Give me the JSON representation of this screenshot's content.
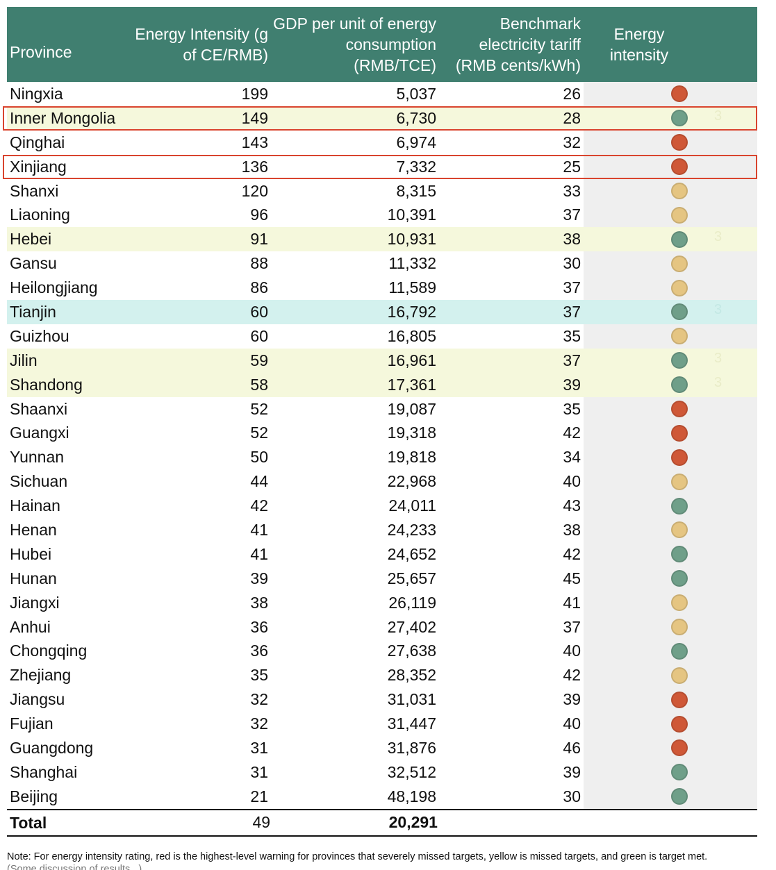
{
  "table": {
    "headers": {
      "province": "Province",
      "intensity": "Energy Intensity (g of CE/RMB)",
      "gdp": "GDP per unit of energy consumption (RMB/TCE)",
      "tariff": "Benchmark electricity tariff (RMB cents/kWh)",
      "rating": "Energy intensity"
    },
    "colors": {
      "header_bg": "#407f70",
      "red": "#cf5837",
      "yellow": "#e5c582",
      "green": "#6f9f89",
      "highlight_yellow": "#f5f8dc",
      "highlight_teal": "#d3f1ee",
      "box_border": "#d9442e"
    },
    "rows": [
      {
        "province": "Ningxia",
        "intensity": "199",
        "gdp": "5,037",
        "tariff": "26",
        "rating": "red"
      },
      {
        "province": "Inner Mongolia",
        "intensity": "149",
        "gdp": "6,730",
        "tariff": "28",
        "rating": "green",
        "highlight": "yellow",
        "boxed": true,
        "ghost": "3"
      },
      {
        "province": "Qinghai",
        "intensity": "143",
        "gdp": "6,974",
        "tariff": "32",
        "rating": "red"
      },
      {
        "province": "Xinjiang",
        "intensity": "136",
        "gdp": "7,332",
        "tariff": "25",
        "rating": "red",
        "boxed": true
      },
      {
        "province": "Shanxi",
        "intensity": "120",
        "gdp": "8,315",
        "tariff": "33",
        "rating": "yellow"
      },
      {
        "province": "Liaoning",
        "intensity": "96",
        "gdp": "10,391",
        "tariff": "37",
        "rating": "yellow"
      },
      {
        "province": "Hebei",
        "intensity": "91",
        "gdp": "10,931",
        "tariff": "38",
        "rating": "green",
        "highlight": "yellow",
        "ghost": "3"
      },
      {
        "province": "Gansu",
        "intensity": "88",
        "gdp": "11,332",
        "tariff": "30",
        "rating": "yellow"
      },
      {
        "province": "Heilongjiang",
        "intensity": "86",
        "gdp": "11,589",
        "tariff": "37",
        "rating": "yellow"
      },
      {
        "province": "Tianjin",
        "intensity": "60",
        "gdp": "16,792",
        "tariff": "37",
        "rating": "green",
        "highlight": "teal",
        "ghost": "3"
      },
      {
        "province": "Guizhou",
        "intensity": "60",
        "gdp": "16,805",
        "tariff": "35",
        "rating": "yellow"
      },
      {
        "province": "Jilin",
        "intensity": "59",
        "gdp": "16,961",
        "tariff": "37",
        "rating": "green",
        "highlight": "yellow",
        "ghost": "3"
      },
      {
        "province": "Shandong",
        "intensity": "58",
        "gdp": "17,361",
        "tariff": "39",
        "rating": "green",
        "highlight": "yellow",
        "ghost": "3"
      },
      {
        "province": "Shaanxi",
        "intensity": "52",
        "gdp": "19,087",
        "tariff": "35",
        "rating": "red"
      },
      {
        "province": "Guangxi",
        "intensity": "52",
        "gdp": "19,318",
        "tariff": "42",
        "rating": "red"
      },
      {
        "province": "Yunnan",
        "intensity": "50",
        "gdp": "19,818",
        "tariff": "34",
        "rating": "red"
      },
      {
        "province": "Sichuan",
        "intensity": "44",
        "gdp": "22,968",
        "tariff": "40",
        "rating": "yellow"
      },
      {
        "province": "Hainan",
        "intensity": "42",
        "gdp": "24,011",
        "tariff": "43",
        "rating": "green"
      },
      {
        "province": "Henan",
        "intensity": "41",
        "gdp": "24,233",
        "tariff": "38",
        "rating": "yellow"
      },
      {
        "province": "Hubei",
        "intensity": "41",
        "gdp": "24,652",
        "tariff": "42",
        "rating": "green"
      },
      {
        "province": "Hunan",
        "intensity": "39",
        "gdp": "25,657",
        "tariff": "45",
        "rating": "green"
      },
      {
        "province": "Jiangxi",
        "intensity": "38",
        "gdp": "26,119",
        "tariff": "41",
        "rating": "yellow"
      },
      {
        "province": "Anhui",
        "intensity": "36",
        "gdp": "27,402",
        "tariff": "37",
        "rating": "yellow"
      },
      {
        "province": "Chongqing",
        "intensity": "36",
        "gdp": "27,638",
        "tariff": "40",
        "rating": "green"
      },
      {
        "province": "Zhejiang",
        "intensity": "35",
        "gdp": "28,352",
        "tariff": "42",
        "rating": "yellow"
      },
      {
        "province": "Jiangsu",
        "intensity": "32",
        "gdp": "31,031",
        "tariff": "39",
        "rating": "red"
      },
      {
        "province": "Fujian",
        "intensity": "32",
        "gdp": "31,447",
        "tariff": "40",
        "rating": "red"
      },
      {
        "province": "Guangdong",
        "intensity": "31",
        "gdp": "31,876",
        "tariff": "46",
        "rating": "red"
      },
      {
        "province": "Shanghai",
        "intensity": "31",
        "gdp": "32,512",
        "tariff": "39",
        "rating": "green"
      },
      {
        "province": "Beijing",
        "intensity": "21",
        "gdp": "48,198",
        "tariff": "30",
        "rating": "green"
      }
    ],
    "total": {
      "label": "Total",
      "intensity": "49",
      "gdp": "20,291"
    }
  },
  "note": "Note: For energy intensity rating, red is the highest-level warning for provinces that severely missed targets, yellow is missed targets, and green is target met.",
  "note_cut": "(Some discussion of results...)"
}
